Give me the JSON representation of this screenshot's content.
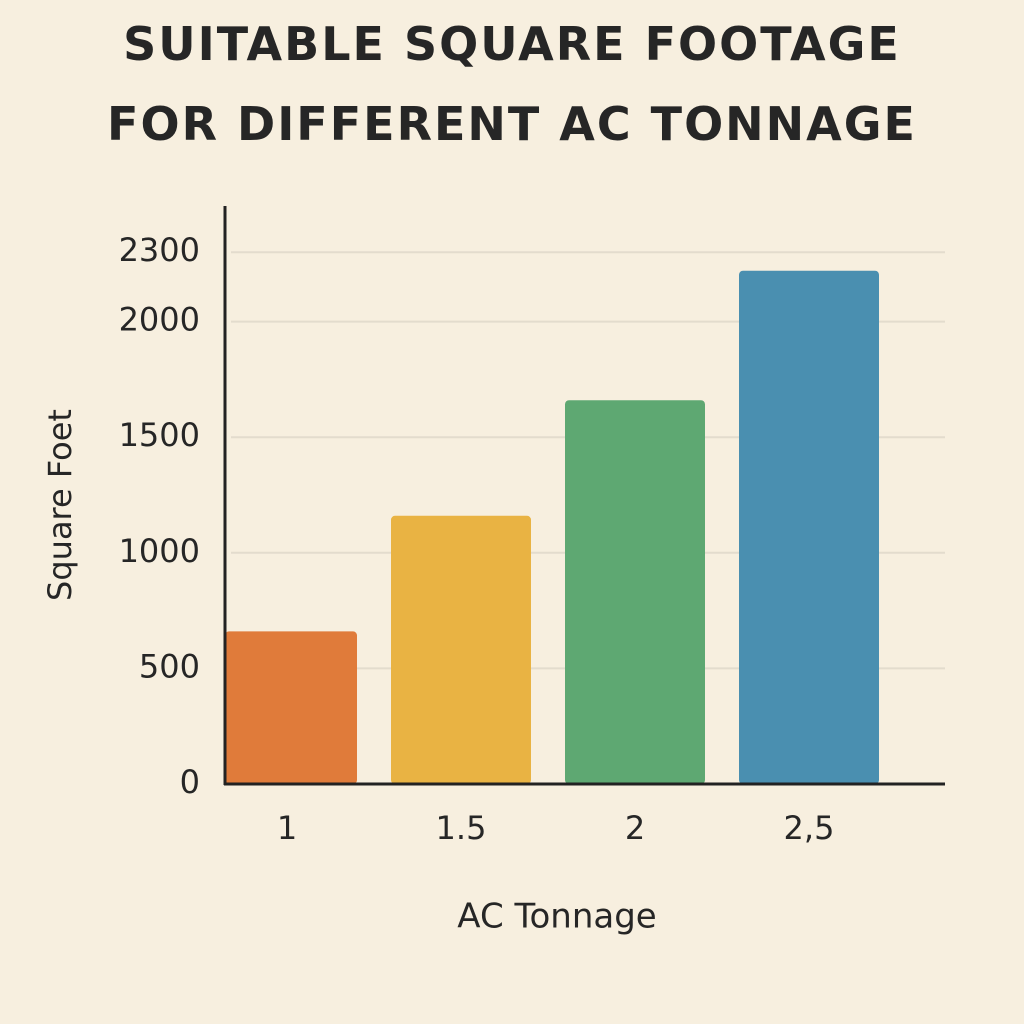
{
  "chart_data": {
    "type": "bar",
    "title": "SUITABLE SQUARE FOOTAGE FOR DIFFERENT AC TONNAGE",
    "x_label": "AC Tonnage",
    "y_label": "Square Foet",
    "categories": [
      "1",
      "1.5",
      "2",
      "2,5"
    ],
    "values": [
      660,
      1160,
      1660,
      2220
    ],
    "colors": [
      "#e07b3a",
      "#e9b343",
      "#5ea872",
      "#4a8fb0"
    ],
    "ylim": [
      0,
      2500
    ],
    "yticks": [
      0,
      500,
      1000,
      1500,
      2000,
      2300
    ],
    "grid": true
  }
}
